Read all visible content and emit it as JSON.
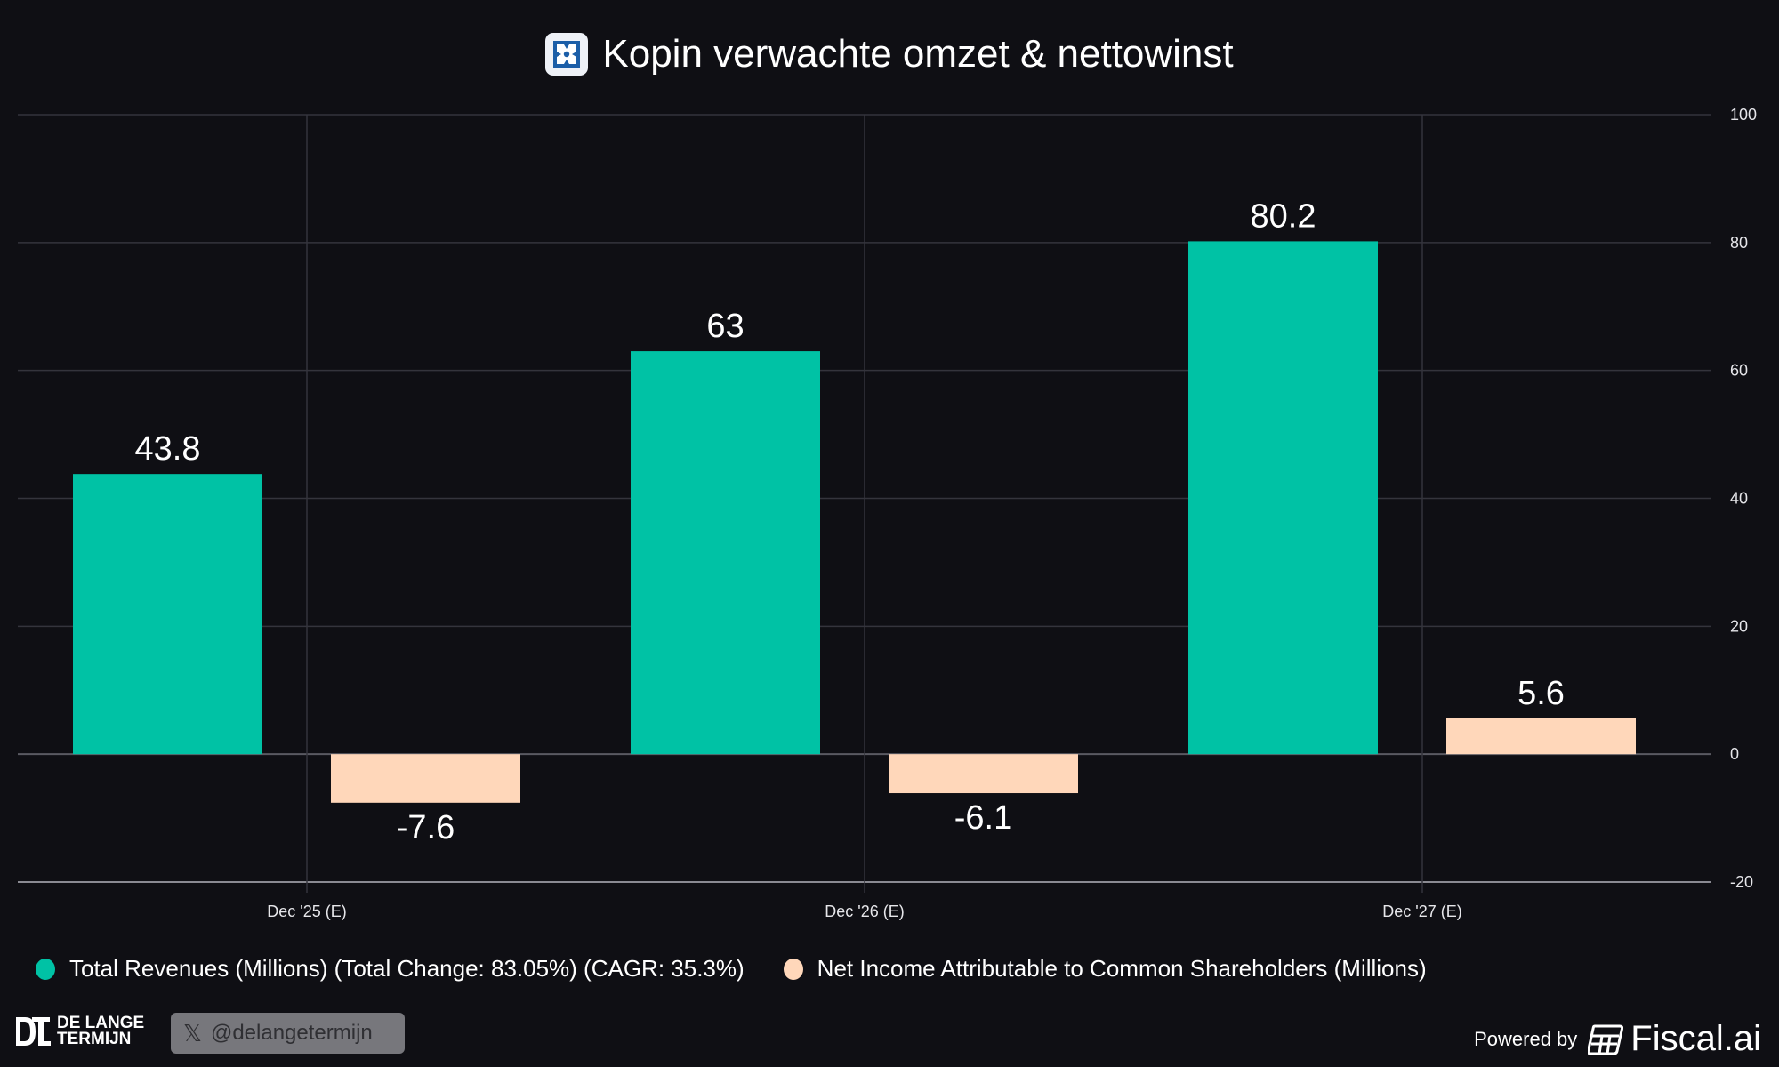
{
  "title": "Kopin verwachte omzet & nettowinst",
  "colors": {
    "background": "#0f0f14",
    "revenue": "#00c2a5",
    "net_income": "#ffd7ba",
    "grid": "#34343c",
    "zero_line": "#5a5a62",
    "axis_line": "#8a8a92"
  },
  "chart_data": {
    "type": "bar",
    "title": "Kopin verwachte omzet & nettowinst",
    "categories": [
      "Dec '25 (E)",
      "Dec '26 (E)",
      "Dec '27 (E)"
    ],
    "series": [
      {
        "name": "Total Revenues (Millions) (Total Change: 83.05%) (CAGR: 35.3%)",
        "values": [
          43.8,
          63,
          80.2
        ],
        "labels": [
          "43.8",
          "63",
          "80.2"
        ]
      },
      {
        "name": "Net Income Attributable to Common Shareholders (Millions)",
        "values": [
          -7.6,
          -6.1,
          5.6
        ],
        "labels": [
          "-7.6",
          "-6.1",
          "5.6"
        ]
      }
    ],
    "ylim": [
      -20,
      100
    ],
    "yticks": [
      "100",
      "80",
      "60",
      "40",
      "20",
      "0",
      "-20"
    ],
    "ytick_values": [
      100,
      80,
      60,
      40,
      20,
      0,
      -20
    ],
    "grid": true,
    "legend_position": "bottom-left",
    "yaxis_side": "right"
  },
  "legend": {
    "revenue": "Total Revenues (Millions) (Total Change: 83.05%) (CAGR: 35.3%)",
    "net_income": "Net Income Attributable to Common Shareholders (Millions)"
  },
  "footer": {
    "brand_line1": "DE LANGE",
    "brand_line2": "TERMIJN",
    "x_handle": "@delangetermijn",
    "powered_by": "Powered by",
    "fiscal": "Fiscal.ai"
  }
}
